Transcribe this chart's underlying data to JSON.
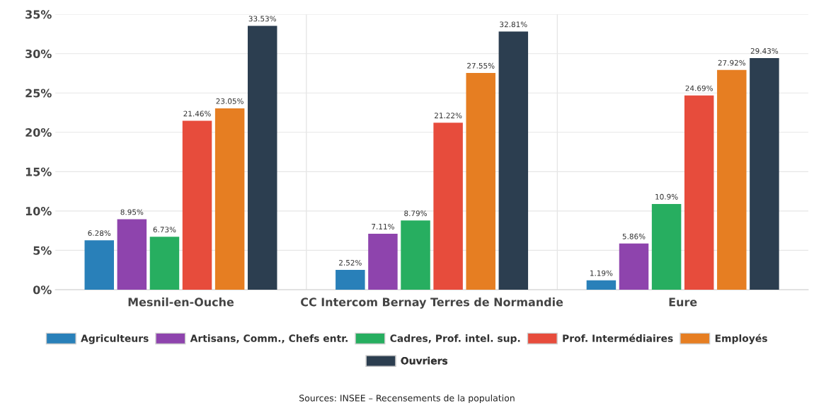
{
  "chart_data": {
    "type": "bar",
    "categories": [
      "Mesnil-en-Ouche",
      "CC Intercom Bernay Terres de Normandie",
      "Eure"
    ],
    "series": [
      {
        "name": "Agriculteurs",
        "color": "#2980b9",
        "values": [
          6.28,
          2.52,
          1.19
        ],
        "value_labels": [
          "6.28%",
          "2.52%",
          "1.19%"
        ]
      },
      {
        "name": "Artisans, Comm., Chefs entr.",
        "color": "#8e44ad",
        "values": [
          8.95,
          7.11,
          5.86
        ],
        "value_labels": [
          "8.95%",
          "7.11%",
          "5.86%"
        ]
      },
      {
        "name": "Cadres, Prof. intel. sup.",
        "color": "#27ae60",
        "values": [
          6.73,
          8.79,
          10.9
        ],
        "value_labels": [
          "6.73%",
          "8.79%",
          "10.9%"
        ]
      },
      {
        "name": "Prof. Intermédiaires",
        "color": "#e74c3c",
        "values": [
          21.46,
          21.22,
          24.69
        ],
        "value_labels": [
          "21.46%",
          "21.22%",
          "24.69%"
        ]
      },
      {
        "name": "Employés",
        "color": "#e67e22",
        "values": [
          23.05,
          27.55,
          27.92
        ],
        "value_labels": [
          "23.05%",
          "27.55%",
          "27.92%"
        ]
      },
      {
        "name": "Ouvriers",
        "color": "#2c3e50",
        "values": [
          33.53,
          32.81,
          29.43
        ],
        "value_labels": [
          "33.53%",
          "32.81%",
          "29.43%"
        ]
      }
    ],
    "ylim": [
      0,
      35
    ],
    "yticks": [
      {
        "value": 0,
        "label": "0%"
      },
      {
        "value": 5,
        "label": "5%"
      },
      {
        "value": 10,
        "label": "10%"
      },
      {
        "value": 15,
        "label": "15%"
      },
      {
        "value": 20,
        "label": "20%"
      },
      {
        "value": 25,
        "label": "25%"
      },
      {
        "value": 30,
        "label": "30%"
      },
      {
        "value": 35,
        "label": "35%"
      }
    ],
    "grid": true,
    "legend": "bottom",
    "annotations": [
      "Sources: INSEE – Recensements de la population"
    ]
  }
}
